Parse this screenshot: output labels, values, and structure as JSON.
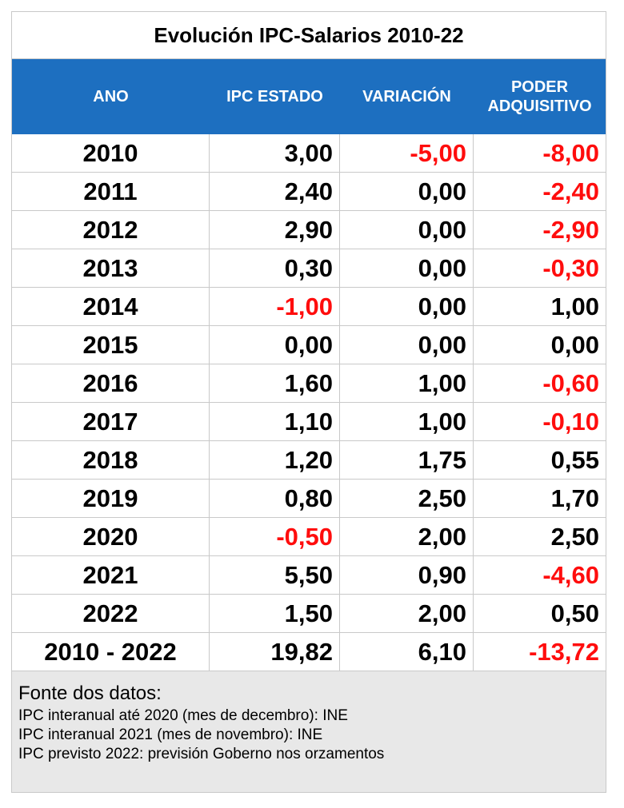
{
  "title": "Evolución IPC-Salarios 2010-22",
  "columns": [
    "ANO",
    "IPC ESTADO",
    "VARIACIÓN",
    "PODER ADQUISITIVO"
  ],
  "rows": [
    {
      "year": "2010",
      "ipc": "3,00",
      "variacion": "-5,00",
      "poder": "-8,00"
    },
    {
      "year": "2011",
      "ipc": "2,40",
      "variacion": "0,00",
      "poder": "-2,40"
    },
    {
      "year": "2012",
      "ipc": "2,90",
      "variacion": "0,00",
      "poder": "-2,90"
    },
    {
      "year": "2013",
      "ipc": "0,30",
      "variacion": "0,00",
      "poder": "-0,30"
    },
    {
      "year": "2014",
      "ipc": "-1,00",
      "variacion": "0,00",
      "poder": "1,00"
    },
    {
      "year": "2015",
      "ipc": "0,00",
      "variacion": "0,00",
      "poder": "0,00"
    },
    {
      "year": "2016",
      "ipc": "1,60",
      "variacion": "1,00",
      "poder": "-0,60"
    },
    {
      "year": "2017",
      "ipc": "1,10",
      "variacion": "1,00",
      "poder": "-0,10"
    },
    {
      "year": "2018",
      "ipc": "1,20",
      "variacion": "1,75",
      "poder": "0,55"
    },
    {
      "year": "2019",
      "ipc": "0,80",
      "variacion": "2,50",
      "poder": "1,70"
    },
    {
      "year": "2020",
      "ipc": "-0,50",
      "variacion": "2,00",
      "poder": "2,50"
    },
    {
      "year": "2021",
      "ipc": "5,50",
      "variacion": "0,90",
      "poder": "-4,60"
    },
    {
      "year": "2022",
      "ipc": "1,50",
      "variacion": "2,00",
      "poder": "0,50"
    },
    {
      "year": "2010 - 2022",
      "ipc": "19,82",
      "variacion": "6,10",
      "poder": "-13,72"
    }
  ],
  "footer": {
    "heading": "Fonte dos datos:",
    "lines": [
      "IPC interanual até 2020 (mes de decembro): INE",
      "IPC interanual 2021 (mes de novembro): INE",
      "IPC previsto 2022: previsión Goberno nos orzamentos"
    ]
  },
  "colors": {
    "header_bg": "#1d6fc0",
    "negative": "#ff0d0d",
    "footer_bg": "#e8e8e8"
  }
}
